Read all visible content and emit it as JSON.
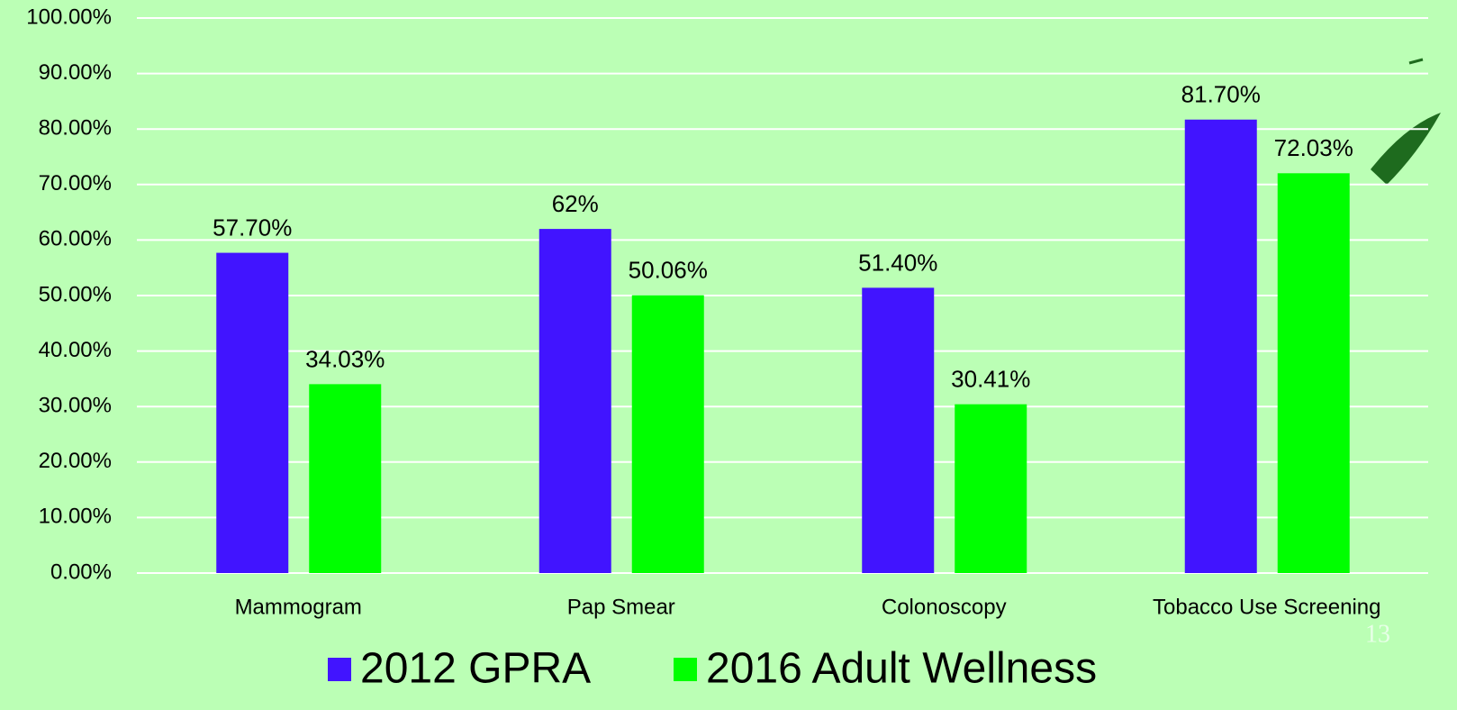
{
  "chart_data": {
    "type": "bar",
    "categories": [
      "Mammogram",
      "Pap Smear",
      "Colonoscopy",
      "Tobacco Use Screening"
    ],
    "series": [
      {
        "name": "2012 GPRA",
        "color": "#4114ff",
        "values": [
          57.7,
          62,
          51.4,
          81.7
        ],
        "value_labels": [
          "57.70%",
          "62%",
          "51.40%",
          "81.70%"
        ]
      },
      {
        "name": "2016 Adult Wellness",
        "color": "#00ff00",
        "values": [
          34.03,
          50.06,
          30.41,
          72.03
        ],
        "value_labels": [
          "34.03%",
          "50.06%",
          "30.41%",
          "72.03%"
        ]
      }
    ],
    "ylim": [
      0,
      100
    ],
    "yticks": [
      {
        "value": 0,
        "label": "0.00%"
      },
      {
        "value": 10,
        "label": "10.00%"
      },
      {
        "value": 20,
        "label": "20.00%"
      },
      {
        "value": 30,
        "label": "30.00%"
      },
      {
        "value": 40,
        "label": "40.00%"
      },
      {
        "value": 50,
        "label": "50.00%"
      },
      {
        "value": 60,
        "label": "60.00%"
      },
      {
        "value": 70,
        "label": "70.00%"
      },
      {
        "value": 80,
        "label": "80.00%"
      },
      {
        "value": 90,
        "label": "90.00%"
      },
      {
        "value": 100,
        "label": "100.00%"
      }
    ],
    "grid": true,
    "legend": "bottom",
    "slide_number": "13"
  }
}
